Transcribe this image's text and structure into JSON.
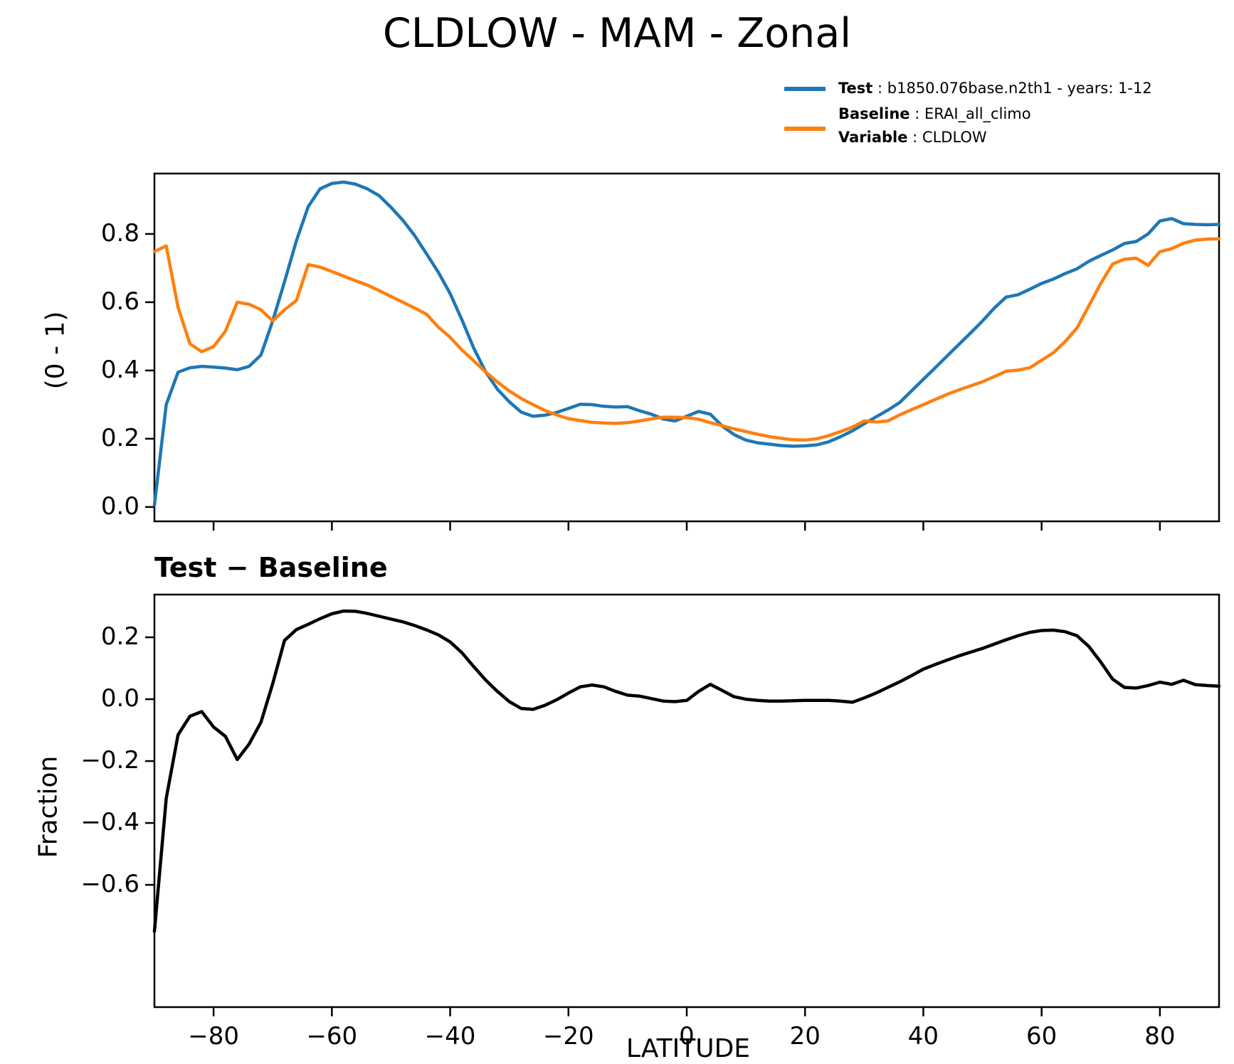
{
  "figure": {
    "title": "CLDLOW - MAM - Zonal",
    "background_color": "#ffffff",
    "spine_color": "#000000"
  },
  "legend": {
    "separator": " : ",
    "entries": [
      {
        "name": "Test",
        "value": "b1850.076base.n2th1 - years: 1-12",
        "color": "#1f77b4"
      },
      {
        "name": "Baseline",
        "value": "ERAI_all_climo",
        "color": "#ff7f0e"
      },
      {
        "name": "Variable",
        "value": "CLDLOW"
      }
    ]
  },
  "chart_data": [
    {
      "type": "line",
      "panel": "top",
      "title": "CLDLOW - MAM - Zonal",
      "xlabel": "",
      "ylabel": "(0 - 1)",
      "xlim": [
        -90,
        90
      ],
      "ylim": [
        -0.042,
        0.977
      ],
      "grid": false,
      "legend_position": "upper-right-outside",
      "yticks": [
        0.0,
        0.2,
        0.4,
        0.6,
        0.8
      ],
      "ytick_labels": [
        "0.0",
        "0.2",
        "0.4",
        "0.6",
        "0.8"
      ],
      "xticks": [
        -80,
        -60,
        -40,
        -20,
        0,
        20,
        40,
        60,
        80
      ],
      "xtick_labels": [],
      "x": [
        -90,
        -88,
        -86,
        -84,
        -82,
        -80,
        -78,
        -76,
        -74,
        -72,
        -70,
        -68,
        -66,
        -64,
        -62,
        -60,
        -58,
        -56,
        -54,
        -52,
        -50,
        -48,
        -46,
        -44,
        -42,
        -40,
        -38,
        -36,
        -34,
        -32,
        -30,
        -28,
        -26,
        -24,
        -22,
        -20,
        -18,
        -16,
        -14,
        -12,
        -10,
        -8,
        -6,
        -4,
        -2,
        0,
        2,
        4,
        6,
        8,
        10,
        12,
        14,
        16,
        18,
        20,
        22,
        24,
        26,
        28,
        30,
        32,
        34,
        36,
        38,
        40,
        42,
        44,
        46,
        48,
        50,
        52,
        54,
        56,
        58,
        60,
        62,
        64,
        66,
        68,
        70,
        72,
        74,
        76,
        78,
        80,
        82,
        84,
        86,
        88,
        90
      ],
      "series": [
        {
          "name": "Test",
          "label": "b1850.076base.n2th1 - years: 1-12",
          "color": "#1f77b4",
          "line_width": 4.5,
          "values": [
            0.005,
            0.3,
            0.395,
            0.408,
            0.412,
            0.41,
            0.407,
            0.402,
            0.412,
            0.445,
            0.545,
            0.66,
            0.78,
            0.88,
            0.932,
            0.948,
            0.952,
            0.946,
            0.932,
            0.912,
            0.878,
            0.84,
            0.795,
            0.742,
            0.688,
            0.625,
            0.548,
            0.465,
            0.396,
            0.345,
            0.308,
            0.278,
            0.266,
            0.269,
            0.277,
            0.289,
            0.301,
            0.3,
            0.295,
            0.293,
            0.294,
            0.282,
            0.272,
            0.258,
            0.252,
            0.266,
            0.28,
            0.272,
            0.237,
            0.212,
            0.196,
            0.188,
            0.184,
            0.18,
            0.178,
            0.179,
            0.182,
            0.191,
            0.206,
            0.223,
            0.244,
            0.264,
            0.284,
            0.306,
            0.34,
            0.374,
            0.408,
            0.442,
            0.476,
            0.51,
            0.545,
            0.583,
            0.615,
            0.622,
            0.638,
            0.655,
            0.668,
            0.684,
            0.698,
            0.72,
            0.737,
            0.753,
            0.772,
            0.778,
            0.8,
            0.838,
            0.845,
            0.83,
            0.828,
            0.827,
            0.828
          ]
        },
        {
          "name": "Baseline",
          "label": "ERAI_all_climo",
          "color": "#ff7f0e",
          "line_width": 4.5,
          "values": [
            0.748,
            0.765,
            0.585,
            0.478,
            0.455,
            0.47,
            0.515,
            0.6,
            0.594,
            0.578,
            0.545,
            0.578,
            0.605,
            0.71,
            0.703,
            0.69,
            0.676,
            0.663,
            0.65,
            0.634,
            0.617,
            0.6,
            0.583,
            0.565,
            0.527,
            0.497,
            0.46,
            0.428,
            0.396,
            0.366,
            0.34,
            0.318,
            0.3,
            0.283,
            0.27,
            0.259,
            0.253,
            0.248,
            0.246,
            0.245,
            0.247,
            0.252,
            0.258,
            0.263,
            0.263,
            0.262,
            0.257,
            0.247,
            0.238,
            0.229,
            0.221,
            0.213,
            0.206,
            0.201,
            0.197,
            0.196,
            0.2,
            0.209,
            0.221,
            0.234,
            0.252,
            0.249,
            0.252,
            0.27,
            0.285,
            0.3,
            0.315,
            0.33,
            0.343,
            0.355,
            0.367,
            0.382,
            0.398,
            0.401,
            0.408,
            0.43,
            0.452,
            0.485,
            0.525,
            0.59,
            0.655,
            0.712,
            0.726,
            0.729,
            0.708,
            0.748,
            0.757,
            0.773,
            0.782,
            0.785,
            0.786
          ]
        }
      ]
    },
    {
      "type": "line",
      "panel": "bottom",
      "title": "Test − Baseline",
      "xlabel": "LATITUDE",
      "ylabel": "Fraction",
      "xlim": [
        -90,
        90
      ],
      "ylim": [
        -0.995,
        0.338
      ],
      "grid": false,
      "yticks": [
        0.2,
        0.0,
        -0.2,
        -0.4,
        -0.6
      ],
      "ytick_labels": [
        "0.2",
        "0.0",
        "−0.2",
        "−0.4",
        "−0.6"
      ],
      "xticks": [
        -80,
        -60,
        -40,
        -20,
        0,
        20,
        40,
        60,
        80
      ],
      "xtick_labels": [
        "−80",
        "−60",
        "−40",
        "−20",
        "0",
        "20",
        "40",
        "60",
        "80"
      ],
      "x": [
        -90,
        -88,
        -86,
        -84,
        -82,
        -80,
        -78,
        -76,
        -74,
        -72,
        -70,
        -68,
        -66,
        -64,
        -62,
        -60,
        -58,
        -56,
        -54,
        -52,
        -50,
        -48,
        -46,
        -44,
        -42,
        -40,
        -38,
        -36,
        -34,
        -32,
        -30,
        -28,
        -26,
        -24,
        -22,
        -20,
        -18,
        -16,
        -14,
        -12,
        -10,
        -8,
        -6,
        -4,
        -2,
        0,
        2,
        4,
        6,
        8,
        10,
        12,
        14,
        16,
        18,
        20,
        22,
        24,
        26,
        28,
        30,
        32,
        34,
        36,
        38,
        40,
        42,
        44,
        46,
        48,
        50,
        52,
        54,
        56,
        58,
        60,
        62,
        64,
        66,
        68,
        70,
        72,
        74,
        76,
        78,
        80,
        82,
        84,
        86,
        88,
        90
      ],
      "series": [
        {
          "name": "Test − Baseline",
          "color": "#000000",
          "line_width": 4.5,
          "values": [
            -0.75,
            -0.32,
            -0.115,
            -0.055,
            -0.04,
            -0.09,
            -0.12,
            -0.195,
            -0.145,
            -0.075,
            0.05,
            0.19,
            0.225,
            0.242,
            0.26,
            0.276,
            0.285,
            0.284,
            0.277,
            0.268,
            0.259,
            0.25,
            0.238,
            0.224,
            0.208,
            0.185,
            0.15,
            0.105,
            0.062,
            0.025,
            -0.008,
            -0.03,
            -0.033,
            -0.02,
            -0.002,
            0.02,
            0.04,
            0.046,
            0.04,
            0.025,
            0.013,
            0.01,
            0.002,
            -0.006,
            -0.008,
            -0.004,
            0.025,
            0.048,
            0.028,
            0.008,
            0.0,
            -0.004,
            -0.006,
            -0.006,
            -0.005,
            -0.004,
            -0.004,
            -0.004,
            -0.006,
            -0.01,
            0.004,
            0.02,
            0.038,
            0.056,
            0.076,
            0.097,
            0.112,
            0.126,
            0.14,
            0.152,
            0.164,
            0.178,
            0.192,
            0.205,
            0.216,
            0.222,
            0.223,
            0.218,
            0.205,
            0.17,
            0.12,
            0.065,
            0.038,
            0.036,
            0.044,
            0.055,
            0.048,
            0.061,
            0.047,
            0.044,
            0.042
          ]
        }
      ]
    }
  ]
}
